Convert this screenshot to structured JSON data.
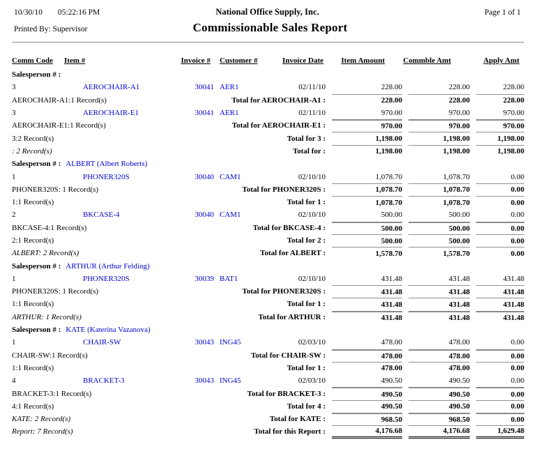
{
  "page": {
    "date": "10/30/10",
    "time": "05:22:16 PM",
    "company": "National Office Supply, Inc.",
    "page_label": "Page 1 of 1",
    "printed_by": "Printed By: Supervisor",
    "title": "Commissionable Sales Report"
  },
  "labels": {
    "salesperson": "Salesperson # :"
  },
  "columns": [
    "Comm Code",
    "Item #",
    "Invoice #",
    "Customer #",
    "Invoice Date",
    "Item Amount",
    "Commble Amt",
    "Apply Amt"
  ],
  "rows": [
    {
      "type": "group",
      "salesperson": ""
    },
    {
      "type": "detail",
      "comm_code": "3",
      "item": "AEROCHAIR-A1",
      "invoice": "30041",
      "customer": "AER1",
      "date": "02/11/10",
      "item_amount": "228.00",
      "commble_amt": "228.00",
      "apply_amt": "228.00"
    },
    {
      "type": "total",
      "rule": "thin",
      "left": "AEROCHAIR-A1:1 Record(s)",
      "left_italic": false,
      "label": "Total for AEROCHAIR-A1 :",
      "item_amount": "228.00",
      "commble_amt": "228.00",
      "apply_amt": "228.00"
    },
    {
      "type": "detail",
      "comm_code": "3",
      "item": "AEROCHAIR-E1",
      "invoice": "30041",
      "customer": "AER1",
      "date": "02/11/10",
      "item_amount": "970.00",
      "commble_amt": "970.00",
      "apply_amt": "970.00"
    },
    {
      "type": "total",
      "rule": "thick",
      "left": "AEROCHAIR-E1:1 Record(s)",
      "left_italic": false,
      "label": "Total for AEROCHAIR-E1 :",
      "item_amount": "970.00",
      "commble_amt": "970.00",
      "apply_amt": "970.00"
    },
    {
      "type": "total",
      "rule": "thin",
      "left": "3:2 Record(s)",
      "left_italic": false,
      "label": "Total for 3 :",
      "item_amount": "1,198.00",
      "commble_amt": "1,198.00",
      "apply_amt": "1,198.00"
    },
    {
      "type": "total",
      "rule": "thin",
      "left": ": 2 Record(s)",
      "left_italic": true,
      "label": "Total for :",
      "item_amount": "1,198.00",
      "commble_amt": "1,198.00",
      "apply_amt": "1,198.00"
    },
    {
      "type": "group",
      "salesperson": "ALBERT (Albert Roberts)"
    },
    {
      "type": "detail",
      "comm_code": "1",
      "item": "PHONER320S",
      "invoice": "30040",
      "customer": "CAM1",
      "date": "02/10/10",
      "item_amount": "1,078.70",
      "commble_amt": "1,078.70",
      "apply_amt": "0.00"
    },
    {
      "type": "total",
      "rule": "thin",
      "left": "PHONER320S: 1 Record(s)",
      "left_italic": false,
      "label": "Total for PHONER320S :",
      "item_amount": "1,078.70",
      "commble_amt": "1,078.70",
      "apply_amt": "0.00"
    },
    {
      "type": "total",
      "rule": "thin",
      "left": "1:1 Record(s)",
      "left_italic": false,
      "label": "Total for 1 :",
      "item_amount": "1,078.70",
      "commble_amt": "1,078.70",
      "apply_amt": "0.00"
    },
    {
      "type": "detail",
      "comm_code": "2",
      "item": "BKCASE-4",
      "invoice": "30040",
      "customer": "CAM1",
      "date": "02/10/10",
      "item_amount": "500.00",
      "commble_amt": "500.00",
      "apply_amt": "0.00"
    },
    {
      "type": "total",
      "rule": "thick",
      "left": "BKCASE-4:1 Record(s)",
      "left_italic": false,
      "label": "Total for BKCASE-4 :",
      "item_amount": "500.00",
      "commble_amt": "500.00",
      "apply_amt": "0.00"
    },
    {
      "type": "total",
      "rule": "thin",
      "left": "2:1 Record(s)",
      "left_italic": false,
      "label": "Total for 2 :",
      "item_amount": "500.00",
      "commble_amt": "500.00",
      "apply_amt": "0.00"
    },
    {
      "type": "total",
      "rule": "thin",
      "left": "ALBERT: 2 Record(s)",
      "left_italic": true,
      "label": "Total for ALBERT :",
      "item_amount": "1,578.70",
      "commble_amt": "1,578.70",
      "apply_amt": "0.00"
    },
    {
      "type": "group",
      "salesperson": "ARTHUR (Arthur Felding)"
    },
    {
      "type": "detail",
      "comm_code": "1",
      "item": "PHONER320S",
      "invoice": "30039",
      "customer": "BAT1",
      "date": "02/10/10",
      "item_amount": "431.48",
      "commble_amt": "431.48",
      "apply_amt": "431.48"
    },
    {
      "type": "total",
      "rule": "thin",
      "left": "PHONER320S: 1 Record(s)",
      "left_italic": false,
      "label": "Total for PHONER320S :",
      "item_amount": "431.48",
      "commble_amt": "431.48",
      "apply_amt": "431.48"
    },
    {
      "type": "total",
      "rule": "thin",
      "left": "1:1 Record(s)",
      "left_italic": false,
      "label": "Total for 1 :",
      "item_amount": "431.48",
      "commble_amt": "431.48",
      "apply_amt": "431.48"
    },
    {
      "type": "total",
      "rule": "thick",
      "left": "ARTHUR: 1 Record(s)",
      "left_italic": true,
      "label": "Total for ARTHUR :",
      "item_amount": "431.48",
      "commble_amt": "431.48",
      "apply_amt": "431.48"
    },
    {
      "type": "group",
      "salesperson": "KATE (Katerina Vazanova)"
    },
    {
      "type": "detail",
      "comm_code": "1",
      "item": "CHAIR-SW",
      "invoice": "30043",
      "customer": "ING45",
      "date": "02/03/10",
      "item_amount": "478.00",
      "commble_amt": "478.00",
      "apply_amt": "0.00"
    },
    {
      "type": "total",
      "rule": "thick",
      "left": "CHAIR-SW:1 Record(s)",
      "left_italic": false,
      "label": "Total for CHAIR-SW :",
      "item_amount": "478.00",
      "commble_amt": "478.00",
      "apply_amt": "0.00"
    },
    {
      "type": "total",
      "rule": "thin",
      "left": "1:1 Record(s)",
      "left_italic": false,
      "label": "Total for 1 :",
      "item_amount": "478.00",
      "commble_amt": "478.00",
      "apply_amt": "0.00"
    },
    {
      "type": "detail",
      "comm_code": "4",
      "item": "BRACKET-3",
      "invoice": "30043",
      "customer": "ING45",
      "date": "02/03/10",
      "item_amount": "490.50",
      "commble_amt": "490.50",
      "apply_amt": "0.00"
    },
    {
      "type": "total",
      "rule": "thick",
      "left": "BRACKET-3:1 Record(s)",
      "left_italic": false,
      "label": "Total for BRACKET-3 :",
      "item_amount": "490.50",
      "commble_amt": "490.50",
      "apply_amt": "0.00"
    },
    {
      "type": "total",
      "rule": "thin",
      "left": "4:1 Record(s)",
      "left_italic": false,
      "label": "Total for 4 :",
      "item_amount": "490.50",
      "commble_amt": "490.50",
      "apply_amt": "0.00"
    },
    {
      "type": "total",
      "rule": "thick",
      "left": "KATE: 2 Record(s)",
      "left_italic": true,
      "label": "Total for KATE :",
      "item_amount": "968.50",
      "commble_amt": "968.50",
      "apply_amt": "0.00"
    },
    {
      "type": "report",
      "rule": "thin",
      "left": "Report: 7 Record(s)",
      "left_italic": true,
      "label": "Total for this Report :",
      "item_amount": "4,176.68",
      "commble_amt": "4,176.68",
      "apply_amt": "1,629.48"
    }
  ]
}
